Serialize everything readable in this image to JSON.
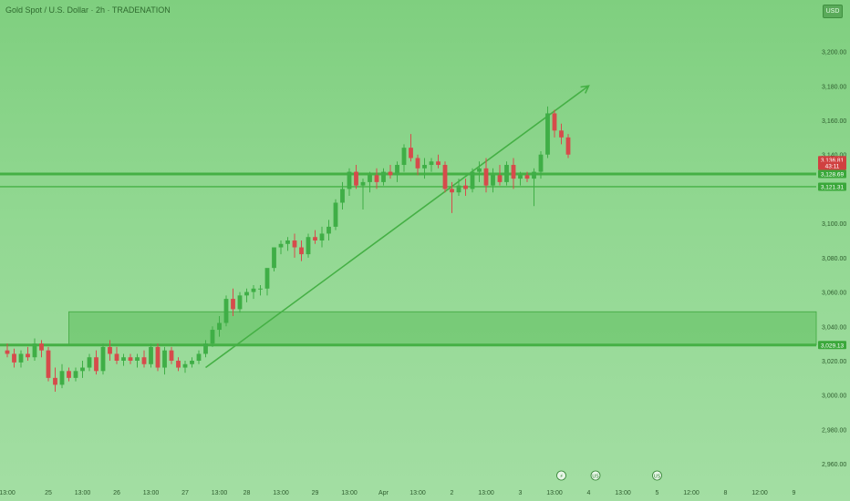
{
  "header": {
    "ticker": "Gold Spot / U.S. Dollar · 2h · TRADENATION",
    "currency": "USD"
  },
  "chart_data": {
    "type": "candlestick",
    "y_range": [
      2950,
      3230
    ],
    "y_ticks": [
      "3,200.00",
      "3,180.00",
      "3,160.00",
      "3,140.00",
      "3,100.00",
      "3,080.00",
      "3,060.00",
      "3,040.00",
      "3,020.00",
      "3,000.00",
      "2,980.00",
      "2,960.00"
    ],
    "y_tick_values": [
      3200,
      3180,
      3160,
      3140,
      3100,
      3080,
      3060,
      3040,
      3020,
      3000,
      2980,
      2960
    ],
    "x_labels": [
      "13:00",
      "25",
      "13:00",
      "26",
      "13:00",
      "27",
      "13:00",
      "28",
      "13:00",
      "29",
      "13:00",
      "Apr",
      "13:00",
      "2",
      "13:00",
      "3",
      "13:00",
      "4",
      "13:00",
      "5",
      "12:00",
      "8",
      "12:00",
      "9"
    ],
    "x_label_index": [
      0,
      6,
      11,
      16,
      21,
      26,
      31,
      35,
      40,
      45,
      50,
      55,
      60,
      65,
      70,
      75,
      80,
      85,
      90,
      95,
      100,
      105,
      110,
      115
    ],
    "candles": [
      [
        3026,
        3030,
        3022,
        3024
      ],
      [
        3024,
        3027,
        3016,
        3019
      ],
      [
        3019,
        3026,
        3016,
        3024
      ],
      [
        3024,
        3028,
        3020,
        3022
      ],
      [
        3022,
        3033,
        3020,
        3030
      ],
      [
        3030,
        3032,
        3022,
        3026
      ],
      [
        3026,
        3028,
        3008,
        3010
      ],
      [
        3010,
        3016,
        3002,
        3006
      ],
      [
        3006,
        3018,
        3004,
        3014
      ],
      [
        3014,
        3016,
        3008,
        3010
      ],
      [
        3010,
        3016,
        3008,
        3014
      ],
      [
        3014,
        3020,
        3010,
        3016
      ],
      [
        3016,
        3024,
        3014,
        3022
      ],
      [
        3022,
        3026,
        3012,
        3014
      ],
      [
        3014,
        3030,
        3012,
        3028
      ],
      [
        3028,
        3032,
        3020,
        3024
      ],
      [
        3024,
        3028,
        3018,
        3020
      ],
      [
        3020,
        3024,
        3017,
        3022
      ],
      [
        3022,
        3024,
        3018,
        3020
      ],
      [
        3020,
        3024,
        3016,
        3022
      ],
      [
        3022,
        3026,
        3016,
        3018
      ],
      [
        3018,
        3030,
        3016,
        3028
      ],
      [
        3028,
        3030,
        3014,
        3016
      ],
      [
        3016,
        3028,
        3012,
        3026
      ],
      [
        3026,
        3028,
        3018,
        3020
      ],
      [
        3020,
        3022,
        3014,
        3016
      ],
      [
        3016,
        3020,
        3013,
        3018
      ],
      [
        3018,
        3022,
        3016,
        3020
      ],
      [
        3020,
        3026,
        3018,
        3024
      ],
      [
        3024,
        3032,
        3022,
        3030
      ],
      [
        3030,
        3040,
        3028,
        3038
      ],
      [
        3038,
        3046,
        3034,
        3042
      ],
      [
        3042,
        3058,
        3040,
        3056
      ],
      [
        3056,
        3062,
        3046,
        3050
      ],
      [
        3050,
        3060,
        3048,
        3058
      ],
      [
        3058,
        3062,
        3054,
        3060
      ],
      [
        3060,
        3064,
        3056,
        3062
      ],
      [
        3062,
        3064,
        3058,
        3062
      ],
      [
        3062,
        3072,
        3058,
        3074
      ],
      [
        3074,
        3086,
        3072,
        3086
      ],
      [
        3086,
        3090,
        3082,
        3088
      ],
      [
        3088,
        3092,
        3084,
        3090
      ],
      [
        3090,
        3094,
        3080,
        3086
      ],
      [
        3086,
        3090,
        3078,
        3082
      ],
      [
        3082,
        3094,
        3080,
        3092
      ],
      [
        3092,
        3096,
        3088,
        3090
      ],
      [
        3090,
        3098,
        3086,
        3094
      ],
      [
        3094,
        3102,
        3090,
        3098
      ],
      [
        3098,
        3114,
        3096,
        3112
      ],
      [
        3112,
        3124,
        3108,
        3120
      ],
      [
        3120,
        3132,
        3116,
        3130
      ],
      [
        3130,
        3134,
        3120,
        3122
      ],
      [
        3122,
        3126,
        3108,
        3124
      ],
      [
        3124,
        3130,
        3118,
        3128
      ],
      [
        3128,
        3132,
        3120,
        3124
      ],
      [
        3124,
        3132,
        3122,
        3130
      ],
      [
        3130,
        3134,
        3126,
        3128
      ],
      [
        3128,
        3136,
        3124,
        3134
      ],
      [
        3134,
        3146,
        3130,
        3144
      ],
      [
        3144,
        3152,
        3136,
        3138
      ],
      [
        3138,
        3140,
        3128,
        3132
      ],
      [
        3132,
        3138,
        3126,
        3134
      ],
      [
        3134,
        3138,
        3130,
        3136
      ],
      [
        3136,
        3140,
        3132,
        3134
      ],
      [
        3134,
        3136,
        3118,
        3120
      ],
      [
        3120,
        3124,
        3106,
        3118
      ],
      [
        3118,
        3126,
        3116,
        3122
      ],
      [
        3122,
        3126,
        3116,
        3120
      ],
      [
        3120,
        3132,
        3118,
        3130
      ],
      [
        3130,
        3136,
        3124,
        3132
      ],
      [
        3132,
        3138,
        3118,
        3122
      ],
      [
        3122,
        3132,
        3118,
        3128
      ],
      [
        3128,
        3134,
        3122,
        3124
      ],
      [
        3124,
        3136,
        3122,
        3134
      ],
      [
        3134,
        3138,
        3120,
        3126
      ],
      [
        3126,
        3130,
        3122,
        3128
      ],
      [
        3128,
        3130,
        3124,
        3126
      ],
      [
        3126,
        3132,
        3110,
        3130
      ],
      [
        3130,
        3142,
        3126,
        3140
      ],
      [
        3140,
        3168,
        3138,
        3164
      ],
      [
        3164,
        3166,
        3150,
        3154
      ],
      [
        3154,
        3158,
        3146,
        3150
      ],
      [
        3150,
        3152,
        3138,
        3140
      ]
    ],
    "price_labels": [
      {
        "text": "3,136.81",
        "price": 3136.81,
        "color": "#d04040"
      },
      {
        "text": "43:11",
        "price": 3133.5,
        "color": "#d04040"
      },
      {
        "text": "3,128.69",
        "price": 3128.69,
        "color": "#3aa83a"
      },
      {
        "text": "3,121.31",
        "price": 3121.31,
        "color": "#3aa83a"
      },
      {
        "text": "3,029.13",
        "price": 3029.13,
        "color": "#3aa83a"
      }
    ],
    "resistance_lines": [
      3128.69,
      3121.31
    ],
    "support_zone": {
      "low": 3029.13,
      "high": 3048.5,
      "start_index": 9
    },
    "support_line": 3029.13,
    "trendline": {
      "from": [
        29,
        3016
      ],
      "to": [
        85,
        3180
      ]
    },
    "event_badges": [
      {
        "index": 81,
        "text": "⚡"
      },
      {
        "index": 86,
        "text": "US"
      },
      {
        "index": 95,
        "text": "US"
      }
    ]
  },
  "colors": {
    "up": "#3fae46",
    "down": "#d64b4b",
    "text": "#2d5b2d",
    "line": "#45b045"
  }
}
